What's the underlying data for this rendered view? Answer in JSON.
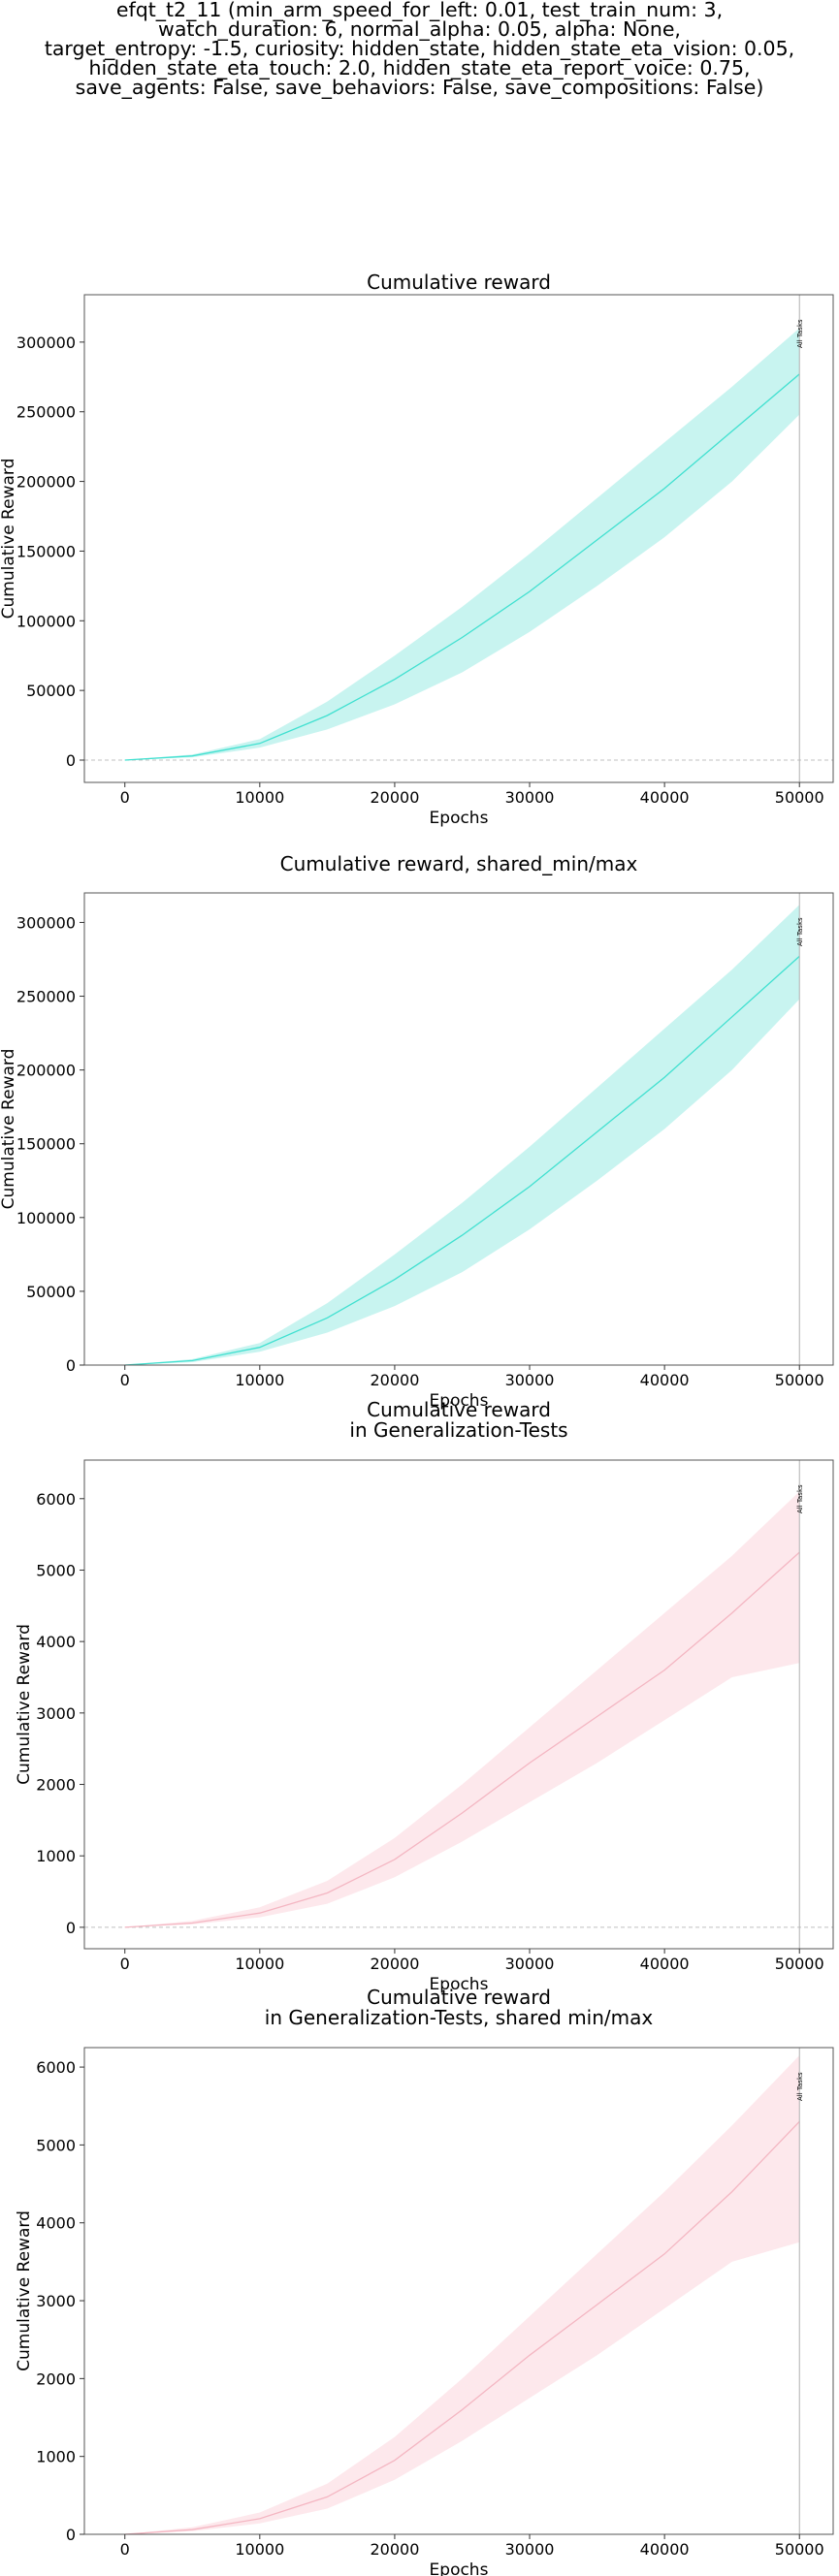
{
  "figure": {
    "suptitle": "efqt_t2_11 (min_arm_speed_for_left: 0.01, test_train_num: 3,\nwatch_duration: 6, normal_alpha: 0.05, alpha: None,\ntarget_entropy: -1.5, curiosity: hidden_state, hidden_state_eta_vision: 0.05,\nhidden_state_eta_touch: 2.0, hidden_state_eta_report_voice: 0.75,\nsave_agents: False, save_behaviors: False, save_compositions: False)"
  },
  "colors": {
    "train_line": "#40e0d0",
    "train_band": "#c8f4f0",
    "test_line": "#f4b6c2",
    "test_band": "#fde8ec",
    "vline": "#b0b0b0",
    "zero_line": "#c0c0c0"
  },
  "chart_data": [
    {
      "type": "line",
      "title": "Cumulative reward",
      "xlabel": "Epochs",
      "ylabel": "Cumulative Reward",
      "xlim": [
        -3000,
        52500
      ],
      "ylim": [
        -16000,
        334000
      ],
      "xticks": [
        0,
        10000,
        20000,
        30000,
        40000,
        50000
      ],
      "yticks": [
        0,
        50000,
        100000,
        150000,
        200000,
        250000,
        300000
      ],
      "zero_line": true,
      "vline": {
        "x": 50000,
        "label": "All Tasks"
      },
      "series": [
        {
          "x": [
            0,
            5000,
            10000,
            15000,
            20000,
            25000,
            30000,
            35000,
            40000,
            45000,
            50000
          ],
          "mean": [
            0,
            3000,
            12000,
            32000,
            58000,
            88000,
            121000,
            158000,
            195000,
            236000,
            277000
          ],
          "low": [
            0,
            2000,
            9000,
            22000,
            40000,
            63000,
            92000,
            125000,
            160000,
            200000,
            248000
          ],
          "high": [
            0,
            4000,
            15000,
            42000,
            75000,
            110000,
            148000,
            188000,
            228000,
            268000,
            310000
          ]
        }
      ]
    },
    {
      "type": "line",
      "title": "Cumulative reward, shared_min/max",
      "xlabel": "Epochs",
      "ylabel": "Cumulative Reward",
      "xlim": [
        -3000,
        52500
      ],
      "ylim": [
        0,
        320000
      ],
      "xticks": [
        0,
        10000,
        20000,
        30000,
        40000,
        50000
      ],
      "yticks": [
        0,
        50000,
        100000,
        150000,
        200000,
        250000,
        300000
      ],
      "zero_line": false,
      "vline": {
        "x": 50000,
        "label": "All Tasks"
      },
      "series": [
        {
          "x": [
            0,
            5000,
            10000,
            15000,
            20000,
            25000,
            30000,
            35000,
            40000,
            45000,
            50000
          ],
          "mean": [
            0,
            3000,
            12000,
            32000,
            58000,
            88000,
            121000,
            158000,
            195000,
            236000,
            277000
          ],
          "low": [
            0,
            2000,
            9000,
            22000,
            40000,
            63000,
            92000,
            125000,
            160000,
            200000,
            248000
          ],
          "high": [
            0,
            4000,
            15000,
            42000,
            75000,
            110000,
            148000,
            188000,
            228000,
            268000,
            312000
          ]
        }
      ]
    },
    {
      "type": "line",
      "title": "Cumulative reward\nin Generalization-Tests",
      "xlabel": "Epochs",
      "ylabel": "Cumulative Reward",
      "xlim": [
        -3000,
        52500
      ],
      "ylim": [
        -300,
        6540
      ],
      "xticks": [
        0,
        10000,
        20000,
        30000,
        40000,
        50000
      ],
      "yticks": [
        0,
        1000,
        2000,
        3000,
        4000,
        5000,
        6000
      ],
      "zero_line": true,
      "vline": {
        "x": 50000,
        "label": "All Tasks"
      },
      "series": [
        {
          "x": [
            0,
            5000,
            10000,
            15000,
            20000,
            25000,
            30000,
            35000,
            40000,
            45000,
            50000
          ],
          "mean": [
            0,
            60,
            200,
            480,
            950,
            1600,
            2300,
            2950,
            3600,
            4400,
            5250
          ],
          "low": [
            0,
            40,
            140,
            330,
            700,
            1200,
            1750,
            2300,
            2900,
            3500,
            3700
          ],
          "high": [
            0,
            90,
            280,
            650,
            1250,
            2000,
            2800,
            3600,
            4400,
            5200,
            6100
          ]
        }
      ]
    },
    {
      "type": "line",
      "title": "Cumulative reward\nin Generalization-Tests, shared min/max",
      "xlabel": "Epochs",
      "ylabel": "Cumulative Reward",
      "xlim": [
        -3000,
        52500
      ],
      "ylim": [
        0,
        6250
      ],
      "xticks": [
        0,
        10000,
        20000,
        30000,
        40000,
        50000
      ],
      "yticks": [
        0,
        1000,
        2000,
        3000,
        4000,
        5000,
        6000
      ],
      "zero_line": false,
      "vline": {
        "x": 50000,
        "label": "All Tasks"
      },
      "series": [
        {
          "x": [
            0,
            5000,
            10000,
            15000,
            20000,
            25000,
            30000,
            35000,
            40000,
            45000,
            50000
          ],
          "mean": [
            0,
            60,
            200,
            480,
            950,
            1600,
            2300,
            2950,
            3600,
            4400,
            5300
          ],
          "low": [
            0,
            40,
            140,
            330,
            700,
            1200,
            1750,
            2300,
            2900,
            3500,
            3750
          ],
          "high": [
            0,
            90,
            280,
            650,
            1250,
            2000,
            2800,
            3600,
            4400,
            5250,
            6150
          ]
        }
      ]
    }
  ]
}
